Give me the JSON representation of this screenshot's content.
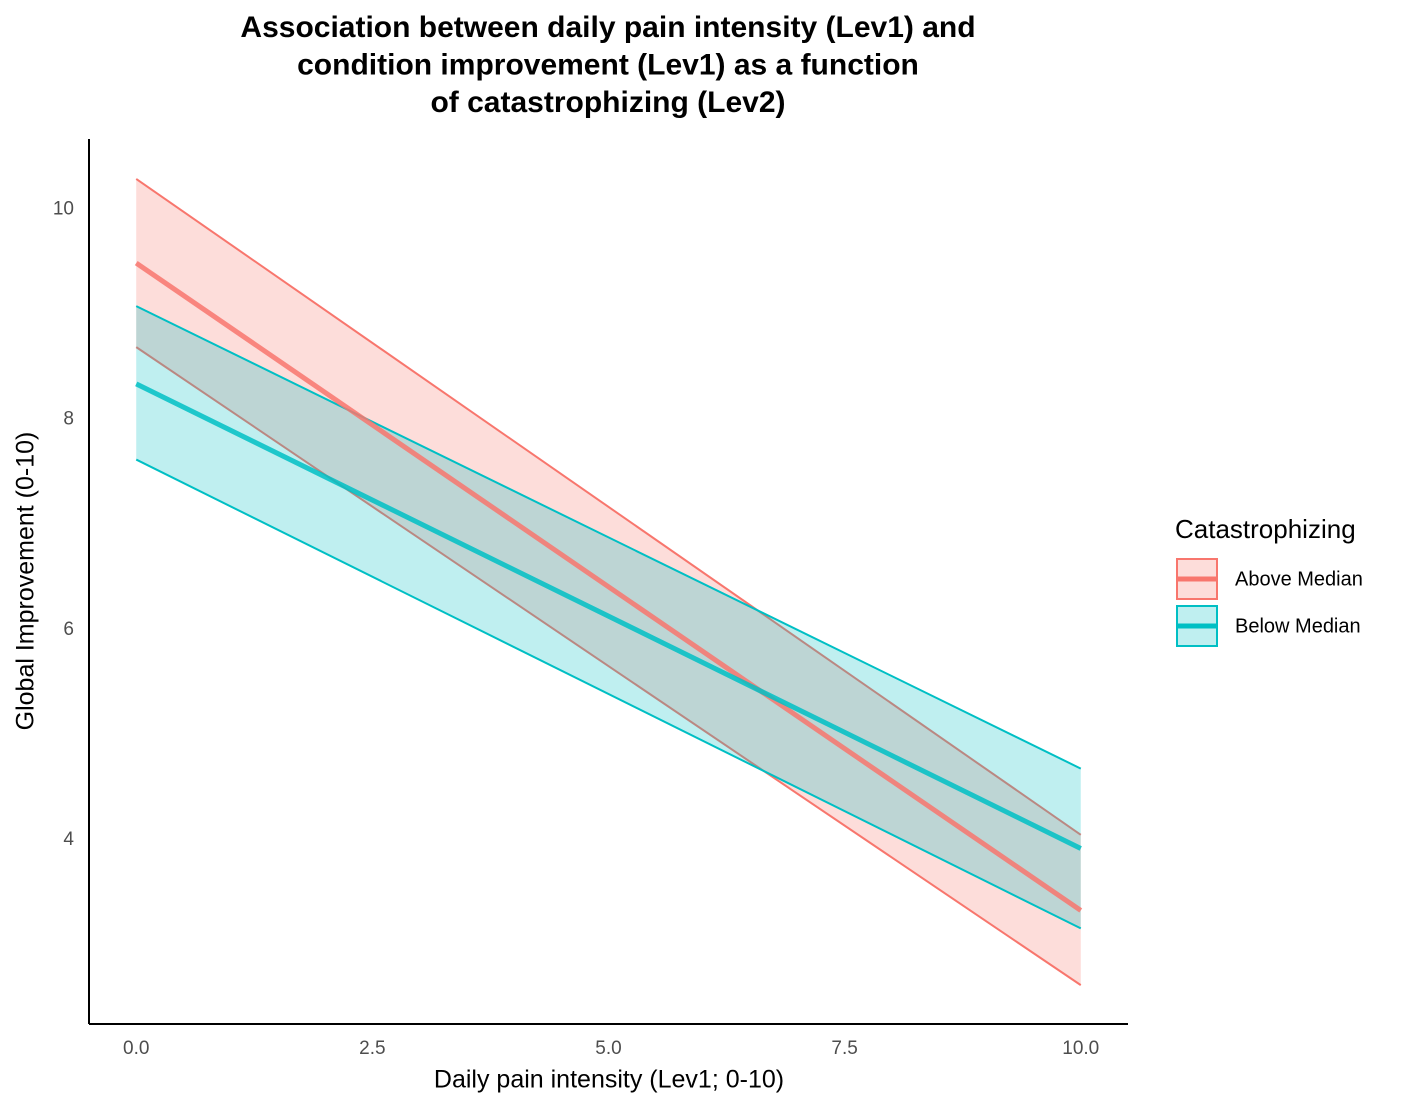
{
  "chart_data": {
    "type": "ribbon-line",
    "title": [
      "Association between daily pain intensity (Lev1) and",
      "condition improvement (Lev1) as a function",
      "of catastrophizing (Lev2)"
    ],
    "x_label": "Daily pain intensity (Lev1; 0-10)",
    "y_label": "Global Improvement (0-10)",
    "x": [
      0,
      10
    ],
    "series": [
      {
        "name": "Above Median",
        "color": "#F8766D",
        "values": [
          9.49,
          3.33
        ],
        "lower": [
          8.69,
          2.62
        ],
        "upper": [
          10.29,
          4.05
        ]
      },
      {
        "name": "Below Median",
        "color": "#00BFC4",
        "values": [
          8.34,
          3.92
        ],
        "lower": [
          7.62,
          3.16
        ],
        "upper": [
          9.08,
          4.68
        ]
      }
    ],
    "xlim": [
      -0.5,
      10.5
    ],
    "ylim": [
      2.25,
      10.67
    ],
    "xticks": [
      {
        "value": 0,
        "label": "0.0"
      },
      2.5,
      {
        "value": 5,
        "label": "5.0"
      },
      7.5,
      {
        "value": 10,
        "label": "10.0"
      }
    ],
    "yticks": [
      4,
      6,
      8,
      10
    ],
    "legend_title": "Catastrophizing",
    "legend_position": "right",
    "grid": false
  }
}
